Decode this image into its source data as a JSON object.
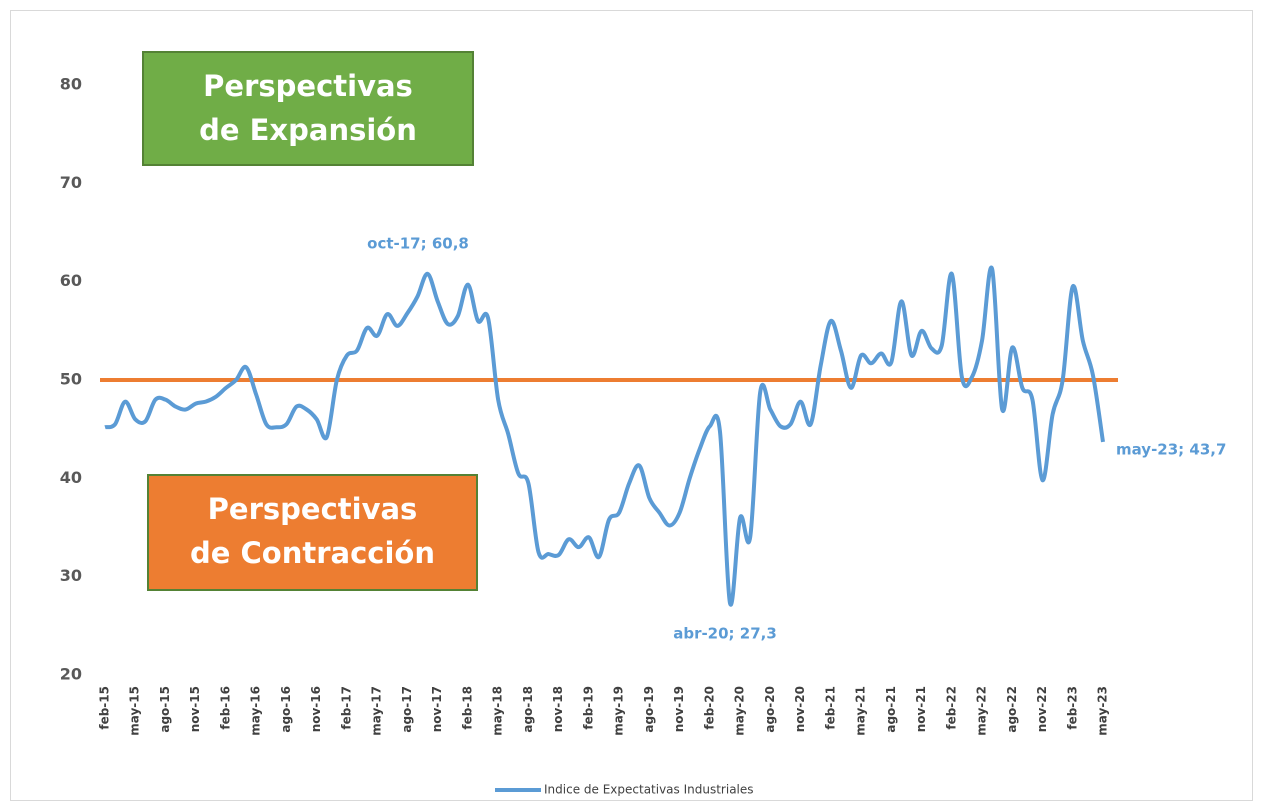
{
  "chart_data": {
    "type": "line",
    "categories": [
      "feb-15",
      null,
      null,
      "may-15",
      null,
      null,
      "ago-15",
      null,
      null,
      "nov-15",
      null,
      null,
      "feb-16",
      null,
      null,
      "may-16",
      null,
      null,
      "ago-16",
      null,
      null,
      "nov-16",
      null,
      null,
      "feb-17",
      null,
      null,
      "may-17",
      null,
      null,
      "ago-17",
      null,
      null,
      "nov-17",
      null,
      null,
      "feb-18",
      null,
      null,
      "may-18",
      null,
      null,
      "ago-18",
      null,
      null,
      "nov-18",
      null,
      null,
      "feb-19",
      null,
      null,
      "may-19",
      null,
      null,
      "ago-19",
      null,
      null,
      "nov-19",
      null,
      null,
      "feb-20",
      null,
      null,
      "may-20",
      null,
      null,
      "ago-20",
      null,
      null,
      "nov-20",
      null,
      null,
      "feb-21",
      null,
      null,
      "may-21",
      null,
      null,
      "ago-21",
      null,
      null,
      "nov-21",
      null,
      null,
      "feb-22",
      null,
      null,
      "may-22",
      null,
      null,
      "ago-22",
      null,
      null,
      "nov-22",
      null,
      null,
      "feb-23",
      null,
      null,
      "may-23"
    ],
    "series": [
      {
        "name": "Indice de Expectativas Industriales",
        "color": "#5b9bd5",
        "values": [
          45.2,
          45.5,
          47.8,
          46,
          45.8,
          48,
          48,
          47.3,
          47,
          47.6,
          47.8,
          48.3,
          49.2,
          50,
          51.3,
          48.5,
          45.5,
          45.2,
          45.5,
          47.3,
          47,
          46,
          44.2,
          50,
          52.5,
          53,
          55.3,
          54.5,
          56.7,
          55.5,
          56.8,
          58.5,
          60.8,
          58,
          55.7,
          56.5,
          59.7,
          56,
          56.3,
          48,
          44.5,
          40.5,
          39.5,
          32.5,
          32.3,
          32.2,
          33.8,
          33,
          34,
          32,
          35.8,
          36.5,
          39.5,
          41.3,
          38,
          36.5,
          35.2,
          36.5,
          40,
          43,
          45.3,
          44.8,
          27.3,
          36,
          34,
          48.8,
          47,
          45.3,
          45.5,
          47.8,
          45.5,
          51.5,
          56,
          53,
          49.2,
          52.5,
          51.7,
          52.7,
          51.8,
          58,
          52.5,
          55,
          53.2,
          53.5,
          60.8,
          50.3,
          50.3,
          54,
          61.3,
          47,
          53.3,
          49.2,
          48,
          39.8,
          46.5,
          50,
          59.5,
          54,
          50.5,
          43.7
        ]
      }
    ],
    "reference_line": {
      "value": 50,
      "color": "#ed7d31"
    },
    "ylim": [
      20,
      80
    ],
    "yticks": [
      20,
      30,
      40,
      50,
      60,
      70,
      80
    ],
    "annotations": [
      "oct-17; 60,8",
      "abr-20; 27,3",
      "may-23; 43,7"
    ],
    "regions": [
      {
        "lines": [
          "Perspectivas",
          "de Expansión"
        ],
        "color": "#70ad47"
      },
      {
        "lines": [
          "Perspectivas",
          "de Contracción"
        ],
        "color": "#ed7d31"
      }
    ],
    "legend": "bottom"
  }
}
